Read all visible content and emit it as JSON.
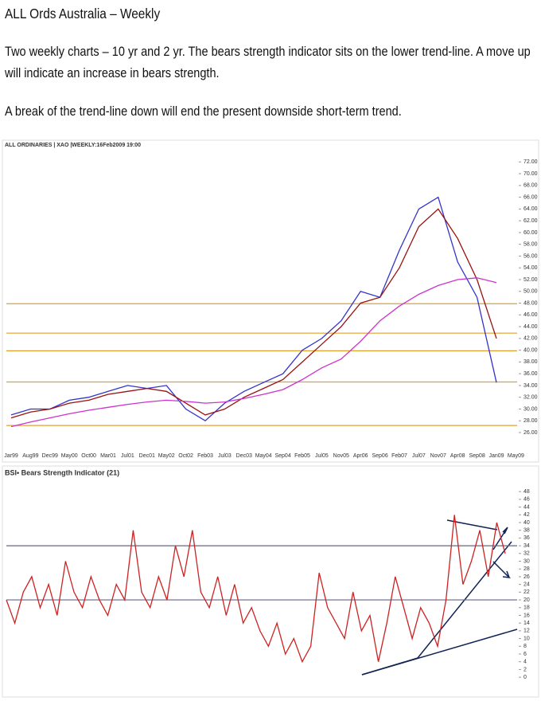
{
  "header": {
    "title": "ALL Ords Australia – Weekly"
  },
  "paragraphs": [
    "Two weekly charts – 10 yr and 2 yr. The bears strength indicator sits on the lower trend-line. A move up will indicate an increase in bears strength.",
    "A break of the trend-line down will end the present downside short-term trend."
  ],
  "chart_data": [
    {
      "type": "line",
      "title": "ALL ORDINARIES | XAO |WEEKLY:16Feb2009 19:00",
      "categories": [
        "Jar99",
        "Aug99",
        "Dec99",
        "May00",
        "Oct00",
        "Mar01",
        "Jul01",
        "Dec01",
        "May02",
        "Oct02",
        "Feb03",
        "Jul03",
        "Dec03",
        "May04",
        "Sep04",
        "Feb05",
        "Jul05",
        "Nov05",
        "Apr06",
        "Sep06",
        "Feb07",
        "Jul07",
        "Nov07",
        "Apr08",
        "Sep08",
        "Jan09",
        "May09"
      ],
      "series": [
        {
          "color": "#3333cc",
          "values": [
            29,
            30,
            30,
            31.5,
            32,
            33,
            34,
            33.5,
            34,
            30,
            28,
            31,
            33,
            34.5,
            36,
            40,
            42,
            45,
            50,
            49,
            57,
            64,
            66,
            55,
            49,
            34.5,
            null
          ]
        },
        {
          "color": "#991111",
          "values": [
            28.5,
            29.5,
            30,
            31,
            31.5,
            32.5,
            33,
            33.5,
            33,
            31,
            29,
            30,
            32,
            33.5,
            35,
            38,
            41,
            44,
            48,
            49,
            54,
            61,
            64,
            59,
            52,
            42,
            null
          ]
        },
        {
          "color": "#cc33cc",
          "values": [
            27,
            27.8,
            28.5,
            29.2,
            29.8,
            30.3,
            30.8,
            31.2,
            31.5,
            31.3,
            31,
            31.2,
            31.8,
            32.5,
            33.3,
            35,
            37,
            38.5,
            41.5,
            45,
            47.5,
            49.5,
            51,
            52,
            52.3,
            51.5,
            null
          ]
        }
      ],
      "levels": [
        47.9,
        42.9,
        39.9,
        34.6,
        27.2
      ],
      "level_color": "#e0a030",
      "ylim": [
        23.7,
        73.8
      ],
      "yticks": [
        {
          "value": 26,
          "label": "26.00"
        },
        {
          "value": 28,
          "label": "28.00"
        },
        {
          "value": 30,
          "label": "30.00"
        },
        {
          "value": 32,
          "label": "32.00"
        },
        {
          "value": 34,
          "label": "34.00"
        },
        {
          "value": 36,
          "label": "36.00"
        },
        {
          "value": 38,
          "label": "38.00"
        },
        {
          "value": 40,
          "label": "40.00"
        },
        {
          "value": 42,
          "label": "42.00"
        },
        {
          "value": 44,
          "label": "44.00"
        },
        {
          "value": 46,
          "label": "46.00"
        },
        {
          "value": 48,
          "label": "48.00"
        },
        {
          "value": 50,
          "label": "50.00"
        },
        {
          "value": 52,
          "label": "52.00"
        },
        {
          "value": 54,
          "label": "54.00"
        },
        {
          "value": 56,
          "label": "56.00"
        },
        {
          "value": 58,
          "label": "58.00"
        },
        {
          "value": 60,
          "label": "60.00"
        },
        {
          "value": 62,
          "label": "62.00"
        },
        {
          "value": 64,
          "label": "64.00"
        },
        {
          "value": 66,
          "label": "66.00"
        },
        {
          "value": 68,
          "label": "68.00"
        },
        {
          "value": 70,
          "label": "70.00"
        },
        {
          "value": 72,
          "label": "72.00"
        }
      ]
    },
    {
      "type": "line",
      "title": "BSI• Bears Strength Indicator (21)",
      "series": [
        {
          "color": "#cc2222",
          "values": [
            20,
            14,
            22,
            26,
            18,
            24,
            16,
            30,
            22,
            18,
            26,
            20,
            16,
            24,
            20,
            38,
            22,
            18,
            26,
            20,
            34,
            26,
            38,
            22,
            18,
            26,
            16,
            24,
            14,
            18,
            12,
            8,
            14,
            6,
            10,
            4,
            8,
            27,
            18,
            14,
            10,
            22,
            12,
            16,
            4,
            14,
            26,
            18,
            10,
            18,
            14,
            8,
            20,
            42,
            24,
            30,
            38,
            26,
            40,
            32
          ]
        }
      ],
      "levels": [
        34,
        20
      ],
      "level_color": "#666688",
      "ylim": [
        -1,
        50.5
      ],
      "yticks": [
        0,
        2,
        4,
        6,
        8,
        10,
        12,
        14,
        16,
        18,
        20,
        22,
        24,
        26,
        28,
        30,
        32,
        34,
        36,
        38,
        40,
        42,
        44,
        46,
        48
      ]
    }
  ]
}
